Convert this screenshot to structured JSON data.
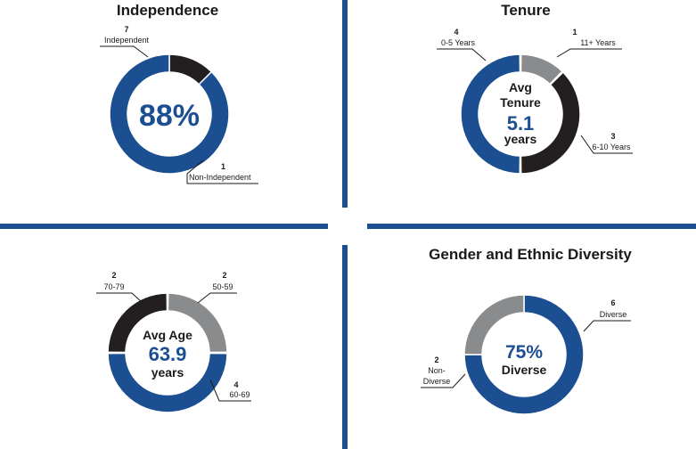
{
  "colors": {
    "blue": "#1c4f91",
    "black": "#231f20",
    "gray": "#8a8b8d"
  },
  "chart_data": [
    {
      "type": "pie",
      "title": "Independence",
      "center": {
        "big": "88%"
      },
      "slices": [
        {
          "count": "1",
          "label": "Non-Independent",
          "value": 1,
          "color": "black"
        },
        {
          "count": "7",
          "label": "Independent",
          "value": 7,
          "color": "blue"
        }
      ]
    },
    {
      "type": "pie",
      "title": "Tenure",
      "center": {
        "line1": "Avg",
        "line2": "Tenure",
        "value": "5.1",
        "unit": "years"
      },
      "slices": [
        {
          "count": "1",
          "label": "11+ Years",
          "value": 1,
          "color": "gray"
        },
        {
          "count": "3",
          "label": "6-10 Years",
          "value": 3,
          "color": "black"
        },
        {
          "count": "4",
          "label": "0-5 Years",
          "value": 4,
          "color": "blue"
        }
      ]
    },
    {
      "type": "pie",
      "title": "",
      "center": {
        "line1": "Avg Age",
        "value": "63.9",
        "unit": "years"
      },
      "slices": [
        {
          "count": "2",
          "label": "50-59",
          "value": 2,
          "color": "gray"
        },
        {
          "count": "4",
          "label": "60-69",
          "value": 4,
          "color": "blue"
        },
        {
          "count": "2",
          "label": "70-79",
          "value": 2,
          "color": "black"
        }
      ]
    },
    {
      "type": "pie",
      "title": "Gender and Ethnic Diversity",
      "center": {
        "value": "75%",
        "unit": "Diverse"
      },
      "slices": [
        {
          "count": "6",
          "label": "Diverse",
          "value": 6,
          "color": "blue"
        },
        {
          "count": "2",
          "label": "Non-Diverse",
          "label_lines": [
            "Non-",
            "Diverse"
          ],
          "value": 2,
          "color": "gray"
        }
      ]
    }
  ]
}
